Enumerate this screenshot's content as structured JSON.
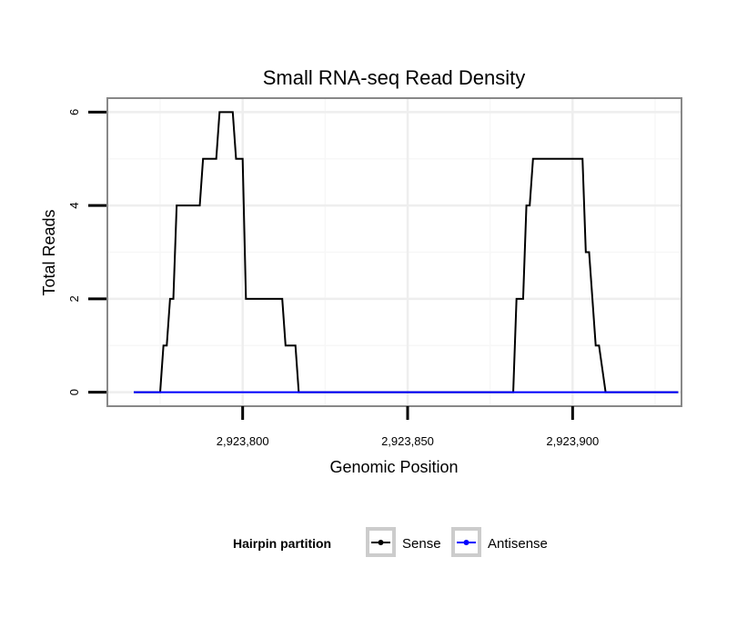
{
  "chart_data": {
    "type": "line",
    "title": "Small RNA-seq Read Density",
    "xlabel": "Genomic Position",
    "ylabel": "Total Reads",
    "xlim": [
      2923759,
      2923933
    ],
    "ylim": [
      -0.3,
      6.3
    ],
    "x_ticks": [
      2923800,
      2923850,
      2923900
    ],
    "x_tick_labels": [
      "2,923,800",
      "2,923,850",
      "2,923,900"
    ],
    "y_ticks": [
      0,
      2,
      4,
      6
    ],
    "y_tick_labels": [
      "0",
      "2",
      "4",
      "6"
    ],
    "grid": true,
    "legend": {
      "title": "Hairpin partition",
      "placement": "bottom",
      "entries": [
        {
          "label": "Sense",
          "color": "#000000"
        },
        {
          "label": "Antisense",
          "color": "#0000ff"
        }
      ]
    },
    "series": [
      {
        "name": "Sense",
        "color": "#000000",
        "points": [
          [
            2923767,
            0
          ],
          [
            2923775,
            0
          ],
          [
            2923776,
            1
          ],
          [
            2923777,
            1
          ],
          [
            2923778,
            2
          ],
          [
            2923779,
            2
          ],
          [
            2923780,
            4
          ],
          [
            2923787,
            4
          ],
          [
            2923788,
            5
          ],
          [
            2923792,
            5
          ],
          [
            2923793,
            6
          ],
          [
            2923797,
            6
          ],
          [
            2923798,
            5
          ],
          [
            2923800,
            5
          ],
          [
            2923801,
            2
          ],
          [
            2923812,
            2
          ],
          [
            2923813,
            1
          ],
          [
            2923816,
            1
          ],
          [
            2923817,
            0
          ],
          [
            2923882,
            0
          ],
          [
            2923883,
            2
          ],
          [
            2923885,
            2
          ],
          [
            2923886,
            4
          ],
          [
            2923887,
            4
          ],
          [
            2923888,
            5
          ],
          [
            2923903,
            5
          ],
          [
            2923904,
            3
          ],
          [
            2923905,
            3
          ],
          [
            2923907,
            1
          ],
          [
            2923908,
            1
          ],
          [
            2923910,
            0
          ],
          [
            2923932,
            0
          ]
        ]
      },
      {
        "name": "Antisense",
        "color": "#0000ff",
        "points": [
          [
            2923767,
            0
          ],
          [
            2923932,
            0
          ]
        ]
      }
    ]
  }
}
